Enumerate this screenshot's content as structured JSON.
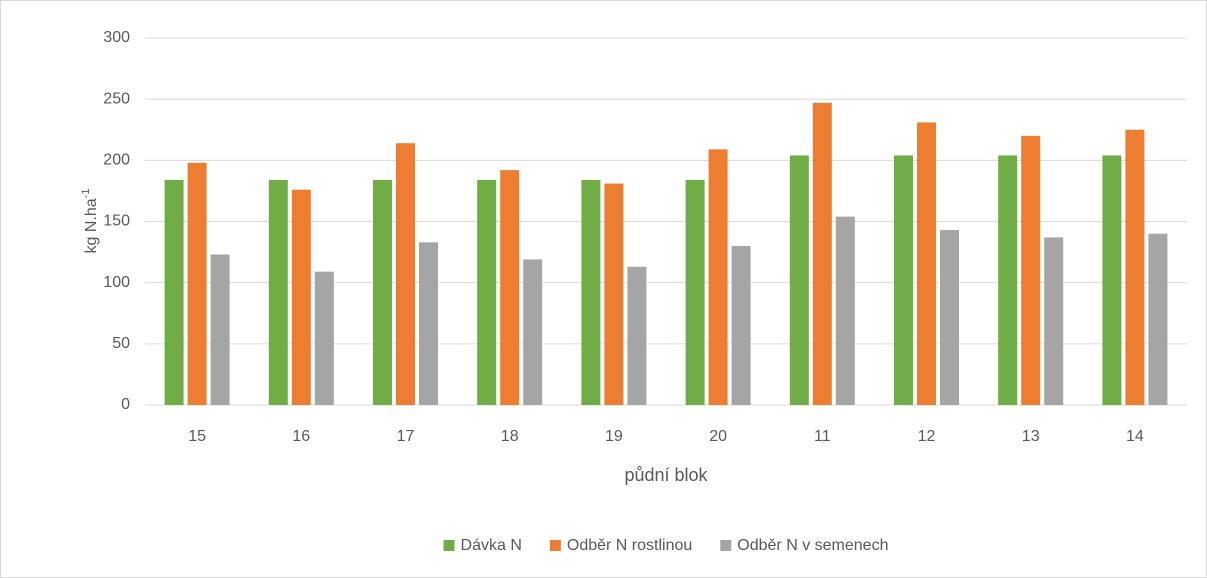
{
  "chart_data": {
    "type": "bar",
    "x_label": "půdní blok",
    "y_label": "kg N.ha",
    "y_label_superscript": "-1",
    "categories": [
      "15",
      "16",
      "17",
      "18",
      "19",
      "20",
      "11",
      "12",
      "13",
      "14"
    ],
    "series": [
      {
        "name": "Dávka N",
        "color": "#70ad47",
        "values": [
          184,
          184,
          184,
          184,
          184,
          184,
          204,
          204,
          204,
          204
        ]
      },
      {
        "name": "Odběr N rostlinou",
        "color": "#ed7d31",
        "values": [
          198,
          176,
          214,
          192,
          181,
          209,
          247,
          231,
          220,
          225
        ]
      },
      {
        "name": "Odběr N v semenech",
        "color": "#a5a5a5",
        "values": [
          123,
          109,
          133,
          119,
          113,
          130,
          154,
          143,
          137,
          140
        ]
      }
    ],
    "ylim": [
      0,
      300
    ],
    "yticks": [
      0,
      50,
      100,
      150,
      200,
      250,
      300
    ],
    "grid": true,
    "legend": "bottom"
  }
}
